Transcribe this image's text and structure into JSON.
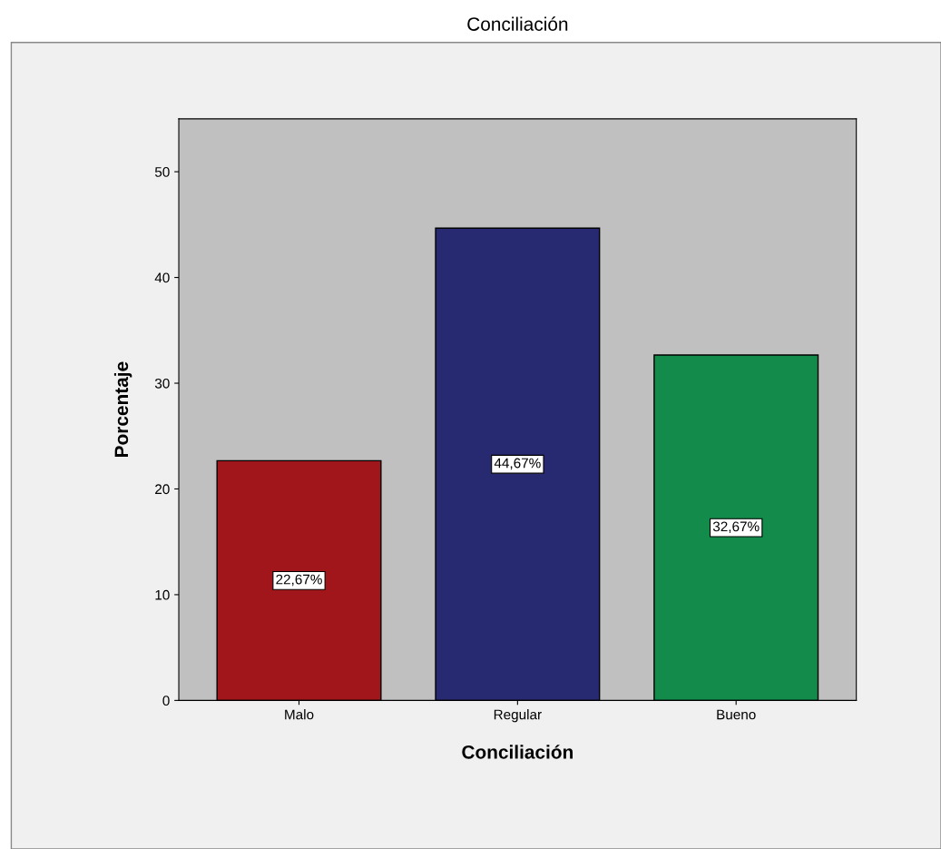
{
  "chart_data": {
    "type": "bar",
    "title": "Conciliación",
    "xlabel": "Conciliación",
    "ylabel": "Porcentaje",
    "categories": [
      "Malo",
      "Regular",
      "Bueno"
    ],
    "values": [
      22.67,
      44.67,
      32.67
    ],
    "colors": [
      "#a0161a",
      "#272a70",
      "#138b4a"
    ],
    "value_labels": [
      "22,67%",
      "44,67%",
      "32,67%"
    ],
    "ylim": [
      0,
      55
    ],
    "yticks": [
      0,
      10,
      20,
      30,
      40,
      50
    ],
    "grid": false
  }
}
